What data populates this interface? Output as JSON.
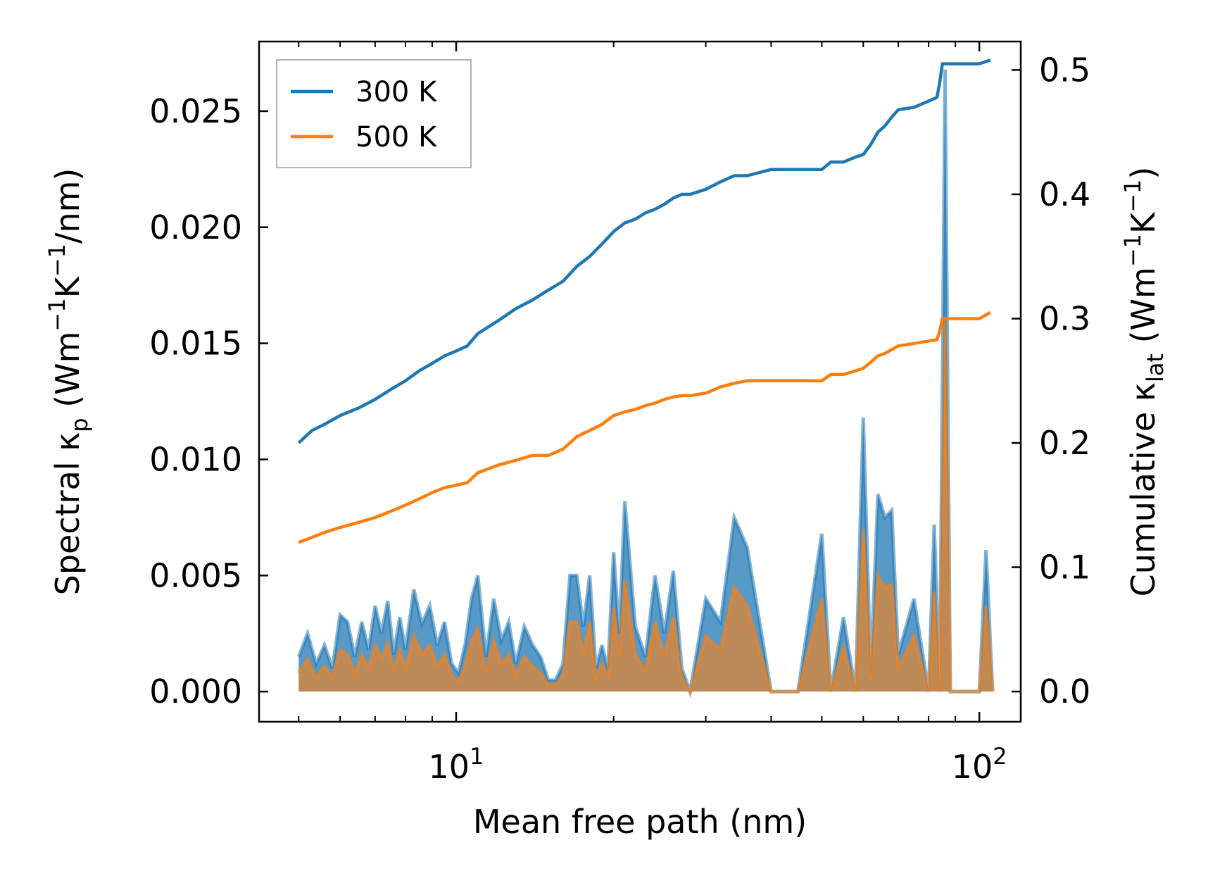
{
  "chart_data": {
    "type": "line",
    "xlabel": "Mean free path (nm)",
    "ylabel_left": {
      "prefix": "Spectral κ",
      "sub": "p",
      "unit_open": " (Wm",
      "unit_sup1": "−1",
      "unit_mid": "K",
      "unit_sup2": "−1",
      "unit_close": "/nm)"
    },
    "ylabel_right": {
      "prefix": "Cumulative κ",
      "sub": "lat",
      "unit_open": " (Wm",
      "unit_sup1": "−1",
      "unit_mid": "K",
      "unit_sup2": "−1",
      "unit_close": ")"
    },
    "xscale": "log",
    "xlim": [
      4.2,
      120
    ],
    "ylim_left": [
      -0.0013,
      0.028
    ],
    "ylim_right": [
      -0.0243,
      0.5229
    ],
    "x_ticks_major": [
      {
        "value": 10,
        "base": "10",
        "exp": "1"
      },
      {
        "value": 100,
        "base": "10",
        "exp": "2"
      }
    ],
    "y_ticks_left": [
      {
        "value": 0.0,
        "label": "0.000"
      },
      {
        "value": 0.005,
        "label": "0.005"
      },
      {
        "value": 0.01,
        "label": "0.010"
      },
      {
        "value": 0.015,
        "label": "0.015"
      },
      {
        "value": 0.02,
        "label": "0.020"
      },
      {
        "value": 0.025,
        "label": "0.025"
      }
    ],
    "y_ticks_right": [
      {
        "value": 0.0,
        "label": "0.0"
      },
      {
        "value": 0.1,
        "label": "0.1"
      },
      {
        "value": 0.2,
        "label": "0.2"
      },
      {
        "value": 0.3,
        "label": "0.3"
      },
      {
        "value": 0.4,
        "label": "0.4"
      },
      {
        "value": 0.5,
        "label": "0.5"
      }
    ],
    "legend": {
      "position": "top-left",
      "entries": [
        "300 K",
        "500 K"
      ]
    },
    "colors": {
      "blue": "#1f77b4",
      "orange": "#ff7f0e"
    },
    "series": [
      {
        "name": "300 K",
        "color": "#1f77b4",
        "cumulative": {
          "x": [
            5.0,
            5.3,
            5.6,
            6.0,
            6.5,
            7.0,
            7.5,
            8.0,
            8.5,
            9.0,
            9.5,
            10.0,
            10.5,
            11.0,
            12.0,
            13.0,
            14.0,
            15.0,
            16.0,
            17.0,
            18.0,
            19.0,
            20.0,
            21.0,
            22.0,
            23.0,
            24.0,
            25.0,
            26.0,
            27.0,
            28.0,
            30.0,
            32.0,
            34.0,
            36.0,
            40.0,
            45.0,
            50.0,
            52.0,
            55.0,
            58.0,
            60.0,
            62.0,
            64.0,
            66.0,
            68.0,
            70.0,
            75.0,
            80.0,
            83.0,
            84.0,
            85.0,
            90.0,
            100.0,
            105.0
          ],
          "y": [
            0.2,
            0.21,
            0.215,
            0.222,
            0.228,
            0.235,
            0.243,
            0.25,
            0.258,
            0.264,
            0.27,
            0.274,
            0.278,
            0.288,
            0.298,
            0.308,
            0.315,
            0.323,
            0.33,
            0.342,
            0.35,
            0.36,
            0.37,
            0.377,
            0.38,
            0.385,
            0.388,
            0.392,
            0.397,
            0.4,
            0.4,
            0.404,
            0.41,
            0.415,
            0.415,
            0.42,
            0.42,
            0.42,
            0.426,
            0.426,
            0.43,
            0.432,
            0.44,
            0.45,
            0.455,
            0.462,
            0.468,
            0.47,
            0.475,
            0.478,
            0.49,
            0.505,
            0.505,
            0.505,
            0.508
          ]
        },
        "spectral": {
          "x": [
            5.0,
            5.2,
            5.4,
            5.6,
            5.8,
            6.0,
            6.2,
            6.4,
            6.6,
            6.8,
            7.0,
            7.2,
            7.4,
            7.6,
            7.8,
            8.0,
            8.3,
            8.6,
            8.9,
            9.2,
            9.5,
            9.8,
            10.1,
            10.4,
            10.7,
            11.0,
            11.4,
            11.8,
            12.2,
            12.6,
            13.0,
            13.5,
            14.0,
            14.5,
            15.0,
            15.5,
            16.0,
            16.5,
            17.0,
            17.5,
            18.0,
            18.5,
            19.0,
            19.5,
            20.0,
            20.5,
            21.0,
            22.0,
            23.0,
            24.0,
            25.0,
            26.0,
            27.0,
            28.0,
            30.0,
            32.0,
            34.0,
            36.0,
            40.0,
            45.0,
            50.0,
            52.0,
            55.0,
            58.0,
            60.0,
            62.0,
            64.0,
            66.0,
            68.0,
            70.0,
            75.0,
            80.0,
            82.0,
            84.0,
            86.0,
            88.0,
            90.0,
            95.0,
            100.0,
            103.0,
            106.0
          ],
          "y": [
            0.0015,
            0.0025,
            0.0012,
            0.002,
            0.001,
            0.0033,
            0.003,
            0.0015,
            0.003,
            0.0018,
            0.0037,
            0.0025,
            0.0039,
            0.0016,
            0.0032,
            0.0018,
            0.0044,
            0.0029,
            0.0037,
            0.002,
            0.003,
            0.0012,
            0.0008,
            0.002,
            0.004,
            0.005,
            0.0015,
            0.004,
            0.0022,
            0.003,
            0.0012,
            0.0028,
            0.002,
            0.0015,
            0.0005,
            0.0005,
            0.0012,
            0.005,
            0.005,
            0.0028,
            0.005,
            0.001,
            0.002,
            0.001,
            0.006,
            0.0025,
            0.0082,
            0.0028,
            0.0015,
            0.005,
            0.0025,
            0.0052,
            0.001,
            0.0,
            0.004,
            0.003,
            0.0075,
            0.0062,
            0.0,
            0.0,
            0.0068,
            0.0,
            0.0032,
            0.0,
            0.0118,
            0.0008,
            0.0085,
            0.0075,
            0.0078,
            0.0016,
            0.004,
            0.0,
            0.0072,
            0.0,
            0.0268,
            0.0,
            0.0,
            0.0,
            0.0,
            0.0061,
            0.0
          ]
        }
      },
      {
        "name": "500 K",
        "color": "#ff7f0e",
        "cumulative": {
          "x": [
            5.0,
            5.3,
            5.6,
            6.0,
            6.5,
            7.0,
            7.5,
            8.0,
            8.5,
            9.0,
            9.5,
            10.0,
            10.5,
            11.0,
            12.0,
            13.0,
            14.0,
            15.0,
            16.0,
            17.0,
            18.0,
            19.0,
            20.0,
            21.0,
            22.0,
            23.0,
            24.0,
            25.0,
            26.0,
            27.0,
            28.0,
            30.0,
            32.0,
            34.0,
            36.0,
            40.0,
            45.0,
            50.0,
            52.0,
            55.0,
            58.0,
            60.0,
            62.0,
            64.0,
            66.0,
            68.0,
            70.0,
            75.0,
            80.0,
            83.0,
            84.0,
            85.0,
            90.0,
            100.0,
            105.0
          ],
          "y": [
            0.12,
            0.124,
            0.128,
            0.132,
            0.136,
            0.14,
            0.145,
            0.15,
            0.155,
            0.16,
            0.164,
            0.166,
            0.168,
            0.176,
            0.182,
            0.186,
            0.19,
            0.19,
            0.195,
            0.205,
            0.21,
            0.215,
            0.222,
            0.225,
            0.227,
            0.23,
            0.232,
            0.235,
            0.237,
            0.238,
            0.238,
            0.24,
            0.245,
            0.248,
            0.25,
            0.25,
            0.25,
            0.25,
            0.255,
            0.255,
            0.258,
            0.26,
            0.265,
            0.27,
            0.272,
            0.275,
            0.278,
            0.28,
            0.282,
            0.283,
            0.29,
            0.3,
            0.3,
            0.3,
            0.305
          ]
        },
        "spectral": {
          "x": [
            5.0,
            5.2,
            5.4,
            5.6,
            5.8,
            6.0,
            6.2,
            6.4,
            6.6,
            6.8,
            7.0,
            7.2,
            7.4,
            7.6,
            7.8,
            8.0,
            8.3,
            8.6,
            8.9,
            9.2,
            9.5,
            9.8,
            10.1,
            10.4,
            10.7,
            11.0,
            11.4,
            11.8,
            12.2,
            12.6,
            13.0,
            13.5,
            14.0,
            14.5,
            15.0,
            15.5,
            16.0,
            16.5,
            17.0,
            17.5,
            18.0,
            18.5,
            19.0,
            19.5,
            20.0,
            20.5,
            21.0,
            22.0,
            23.0,
            24.0,
            25.0,
            26.0,
            27.0,
            28.0,
            30.0,
            32.0,
            34.0,
            36.0,
            40.0,
            45.0,
            50.0,
            52.0,
            55.0,
            58.0,
            60.0,
            62.0,
            64.0,
            66.0,
            68.0,
            70.0,
            75.0,
            80.0,
            82.0,
            84.0,
            86.0,
            88.0,
            90.0,
            95.0,
            100.0,
            103.0,
            106.0
          ],
          "y": [
            0.0008,
            0.0014,
            0.0006,
            0.0011,
            0.0006,
            0.0018,
            0.0016,
            0.0008,
            0.0016,
            0.001,
            0.002,
            0.0014,
            0.0021,
            0.0009,
            0.0018,
            0.001,
            0.0024,
            0.0016,
            0.002,
            0.0011,
            0.0016,
            0.0007,
            0.0004,
            0.0011,
            0.0022,
            0.0027,
            0.0008,
            0.0022,
            0.0012,
            0.0016,
            0.0007,
            0.0015,
            0.0011,
            0.0008,
            0.0003,
            0.0003,
            0.0007,
            0.003,
            0.003,
            0.0016,
            0.003,
            0.0006,
            0.0012,
            0.0006,
            0.0036,
            0.0015,
            0.0048,
            0.0016,
            0.0009,
            0.003,
            0.0015,
            0.0032,
            0.0006,
            0.0,
            0.0024,
            0.0018,
            0.0045,
            0.0037,
            0.0,
            0.0,
            0.004,
            0.0,
            0.0019,
            0.0,
            0.007,
            0.0005,
            0.005,
            0.0045,
            0.0046,
            0.001,
            0.0024,
            0.0,
            0.0043,
            0.0,
            0.016,
            0.0,
            0.0,
            0.0,
            0.0,
            0.0037,
            0.0
          ]
        }
      }
    ]
  }
}
